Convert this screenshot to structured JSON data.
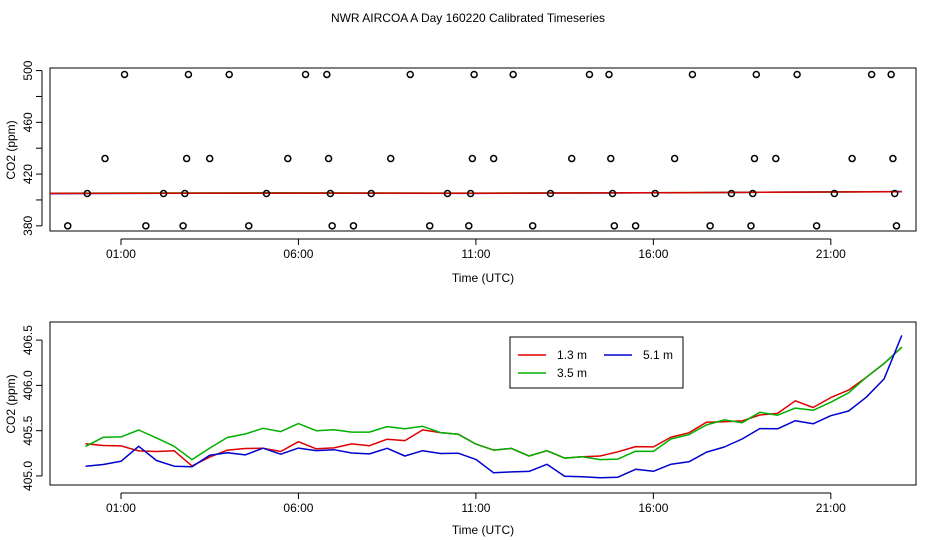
{
  "title": "NWR AIRCOA A  Day 160220  Calibrated Timeseries",
  "colors": {
    "s13": "#e00000",
    "s35": "#00b000",
    "s51": "#0000d0"
  },
  "chart_data": [
    {
      "type": "scatter",
      "xlabel": "Time (UTC)",
      "ylabel": "CO2 (ppm)",
      "xlim": [
        -1,
        23.4
      ],
      "ylim": [
        376,
        502
      ],
      "xticks": [
        1,
        6,
        11,
        16,
        21
      ],
      "xtick_labels": [
        "01:00",
        "06:00",
        "11:00",
        "16:00",
        "21:00"
      ],
      "yticks": [
        380,
        420,
        460,
        500
      ],
      "ytick_labels": [
        "380",
        "420",
        "460",
        "500"
      ],
      "yminor": [
        400,
        440,
        480
      ],
      "points": [
        {
          "x": -0.5,
          "y": 380
        },
        {
          "x": 0.05,
          "y": 405
        },
        {
          "x": 0.55,
          "y": 432
        },
        {
          "x": 1.1,
          "y": 497
        },
        {
          "x": 1.7,
          "y": 380
        },
        {
          "x": 2.2,
          "y": 405
        },
        {
          "x": 2.75,
          "y": 380
        },
        {
          "x": 2.8,
          "y": 405
        },
        {
          "x": 2.85,
          "y": 432
        },
        {
          "x": 2.9,
          "y": 497
        },
        {
          "x": 3.5,
          "y": 432
        },
        {
          "x": 4.05,
          "y": 497
        },
        {
          "x": 4.6,
          "y": 380
        },
        {
          "x": 5.1,
          "y": 405
        },
        {
          "x": 5.7,
          "y": 432
        },
        {
          "x": 6.2,
          "y": 497
        },
        {
          "x": 6.8,
          "y": 497
        },
        {
          "x": 6.85,
          "y": 432
        },
        {
          "x": 6.9,
          "y": 405
        },
        {
          "x": 6.95,
          "y": 380
        },
        {
          "x": 7.55,
          "y": 380
        },
        {
          "x": 8.05,
          "y": 405
        },
        {
          "x": 8.6,
          "y": 432
        },
        {
          "x": 9.15,
          "y": 497
        },
        {
          "x": 9.7,
          "y": 380
        },
        {
          "x": 10.2,
          "y": 405
        },
        {
          "x": 10.8,
          "y": 380
        },
        {
          "x": 10.85,
          "y": 405
        },
        {
          "x": 10.9,
          "y": 432
        },
        {
          "x": 10.95,
          "y": 497
        },
        {
          "x": 11.5,
          "y": 432
        },
        {
          "x": 12.05,
          "y": 497
        },
        {
          "x": 12.6,
          "y": 380
        },
        {
          "x": 13.1,
          "y": 405
        },
        {
          "x": 13.7,
          "y": 432
        },
        {
          "x": 14.2,
          "y": 497
        },
        {
          "x": 14.75,
          "y": 497
        },
        {
          "x": 14.8,
          "y": 432
        },
        {
          "x": 14.85,
          "y": 405
        },
        {
          "x": 14.9,
          "y": 380
        },
        {
          "x": 15.5,
          "y": 380
        },
        {
          "x": 16.05,
          "y": 405
        },
        {
          "x": 16.6,
          "y": 432
        },
        {
          "x": 17.1,
          "y": 497
        },
        {
          "x": 17.6,
          "y": 380
        },
        {
          "x": 18.2,
          "y": 405
        },
        {
          "x": 18.75,
          "y": 380
        },
        {
          "x": 18.8,
          "y": 405
        },
        {
          "x": 18.85,
          "y": 432
        },
        {
          "x": 18.9,
          "y": 497
        },
        {
          "x": 19.45,
          "y": 432
        },
        {
          "x": 20.05,
          "y": 497
        },
        {
          "x": 20.6,
          "y": 380
        },
        {
          "x": 21.1,
          "y": 405
        },
        {
          "x": 21.6,
          "y": 432
        },
        {
          "x": 22.15,
          "y": 497
        },
        {
          "x": 22.7,
          "y": 497
        },
        {
          "x": 22.75,
          "y": 432
        },
        {
          "x": 22.8,
          "y": 405
        },
        {
          "x": 22.85,
          "y": 380
        }
      ],
      "lines": [
        {
          "name": "5.1 m",
          "x": [
            -1,
            5,
            11,
            17,
            23
          ],
          "y": [
            404.9,
            405.3,
            405.1,
            405.6,
            406.5
          ]
        },
        {
          "name": "3.5 m",
          "x": [
            -1,
            5,
            11,
            17,
            23
          ],
          "y": [
            405.2,
            405.5,
            405.3,
            405.7,
            406.4
          ]
        },
        {
          "name": "1.3 m",
          "x": [
            -1,
            5,
            11,
            17,
            23
          ],
          "y": [
            405.1,
            405.3,
            405.2,
            405.7,
            406.4
          ]
        }
      ]
    },
    {
      "type": "line",
      "xlabel": "Time (UTC)",
      "ylabel": "CO2 (ppm)",
      "xlim": [
        -1,
        23.4
      ],
      "ylim": [
        404.9,
        406.7
      ],
      "xticks": [
        1,
        6,
        11,
        16,
        21
      ],
      "xtick_labels": [
        "01:00",
        "06:00",
        "11:00",
        "16:00",
        "21:00"
      ],
      "yticks": [
        405.0,
        405.5,
        406.0,
        406.5
      ],
      "ytick_labels": [
        "405.0",
        "405.5",
        "406.0",
        "406.5"
      ],
      "legend": {
        "position": "top-center",
        "entries": [
          "1.3 m",
          "5.1 m",
          "3.5 m"
        ]
      },
      "series": [
        {
          "name": "1.3 m",
          "x": [
            0,
            0.5,
            1,
            1.5,
            2,
            2.5,
            3,
            3.5,
            4,
            4.5,
            5,
            5.5,
            6,
            6.5,
            7,
            7.5,
            8,
            8.5,
            9,
            9.5,
            10,
            10.5,
            11,
            11.5,
            12,
            12.5,
            13,
            13.5,
            14,
            14.5,
            15,
            15.5,
            16,
            16.5,
            17,
            17.5,
            18,
            18.5,
            19,
            19.5,
            20,
            20.5,
            21,
            21.5,
            22,
            22.5,
            23
          ],
          "y": [
            405.35,
            405.33,
            405.35,
            405.25,
            405.3,
            405.25,
            405.13,
            405.2,
            405.28,
            405.32,
            405.28,
            405.3,
            405.35,
            405.32,
            405.3,
            405.35,
            405.35,
            405.38,
            405.42,
            405.48,
            405.5,
            405.45,
            405.35,
            405.3,
            405.28,
            405.25,
            405.25,
            405.22,
            405.2,
            405.22,
            405.28,
            405.3,
            405.35,
            405.4,
            405.5,
            405.58,
            405.6,
            405.62,
            405.65,
            405.72,
            405.8,
            405.78,
            405.85,
            405.95,
            406.1,
            406.22,
            406.45
          ]
        },
        {
          "name": "3.5 m",
          "x": [
            0,
            0.5,
            1,
            1.5,
            2,
            2.5,
            3,
            3.5,
            4,
            4.5,
            5,
            5.5,
            6,
            6.5,
            7,
            7.5,
            8,
            8.5,
            9,
            9.5,
            10,
            10.5,
            11,
            11.5,
            12,
            12.5,
            13,
            13.5,
            14,
            14.5,
            15,
            15.5,
            16,
            16.5,
            17,
            17.5,
            18,
            18.5,
            19,
            19.5,
            20,
            20.5,
            21,
            21.5,
            22,
            22.5,
            23
          ],
          "y": [
            405.32,
            405.42,
            405.45,
            405.48,
            405.45,
            405.3,
            405.2,
            405.3,
            405.42,
            405.48,
            405.5,
            405.52,
            405.55,
            405.52,
            405.5,
            405.48,
            405.5,
            405.52,
            405.55,
            405.52,
            405.5,
            405.45,
            405.35,
            405.3,
            405.28,
            405.25,
            405.25,
            405.22,
            405.2,
            405.18,
            405.2,
            405.25,
            405.3,
            405.38,
            405.48,
            405.55,
            405.62,
            405.6,
            405.68,
            405.7,
            405.72,
            405.75,
            405.8,
            405.92,
            406.1,
            406.22,
            406.45
          ]
        },
        {
          "name": "5.1 m",
          "x": [
            0,
            0.5,
            1,
            1.5,
            2,
            2.5,
            3,
            3.5,
            4,
            4.5,
            5,
            5.5,
            6,
            6.5,
            7,
            7.5,
            8,
            8.5,
            9,
            9.5,
            10,
            10.5,
            11,
            11.5,
            12,
            12.5,
            13,
            13.5,
            14,
            14.5,
            15,
            15.5,
            16,
            16.5,
            17,
            17.5,
            18,
            18.5,
            19,
            19.5,
            20,
            20.5,
            21,
            21.5,
            22,
            22.5,
            23
          ],
          "y": [
            405.1,
            405.12,
            405.18,
            405.3,
            405.2,
            405.08,
            405.12,
            405.22,
            405.25,
            405.25,
            405.28,
            405.27,
            405.28,
            405.3,
            405.28,
            405.25,
            405.26,
            405.28,
            405.25,
            405.25,
            405.27,
            405.24,
            405.18,
            405.05,
            405.02,
            405.08,
            405.1,
            405.02,
            404.98,
            404.98,
            405.0,
            405.05,
            405.08,
            405.1,
            405.18,
            405.25,
            405.32,
            405.42,
            405.5,
            405.55,
            405.58,
            405.6,
            405.65,
            405.72,
            405.88,
            406.05,
            406.58
          ]
        }
      ]
    }
  ]
}
